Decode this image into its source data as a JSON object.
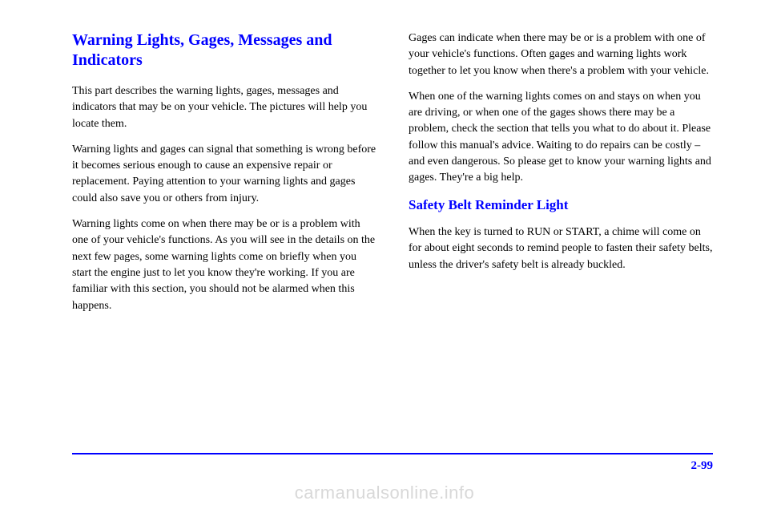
{
  "left": {
    "heading": "Warning Lights, Gages, Messages and Indicators",
    "paragraphs": [
      "This part describes the warning lights, gages, messages and indicators that may be on your vehicle. The pictures will help you locate them.",
      "Warning lights and gages can signal that something is wrong before it becomes serious enough to cause an expensive repair or replacement. Paying attention to your warning lights and gages could also save you or others from injury.",
      "Warning lights come on when there may be or is a problem with one of your vehicle's functions. As you will see in the details on the next few pages, some warning lights come on briefly when you start the engine just to let you know they're working. If you are familiar with this section, you should not be alarmed when this happens."
    ]
  },
  "right": {
    "intro_paragraphs": [
      "Gages can indicate when there may be or is a problem with one of your vehicle's functions. Often gages and warning lights work together to let you know when there's a problem with your vehicle.",
      "When one of the warning lights comes on and stays on when you are driving, or when one of the gages shows there may be a problem, check the section that tells you what to do about it. Please follow this manual's advice. Waiting to do repairs can be costly – and even dangerous. So please get to know your warning lights and gages. They're a big help."
    ],
    "sub_heading": "Safety Belt Reminder Light",
    "sub_paragraph": "When the key is turned to RUN or START, a chime will come on for about eight seconds to remind people to fasten their safety belts, unless the driver's safety belt is already buckled."
  },
  "page_number": "2-99",
  "watermark": "carmanualsonline.info"
}
